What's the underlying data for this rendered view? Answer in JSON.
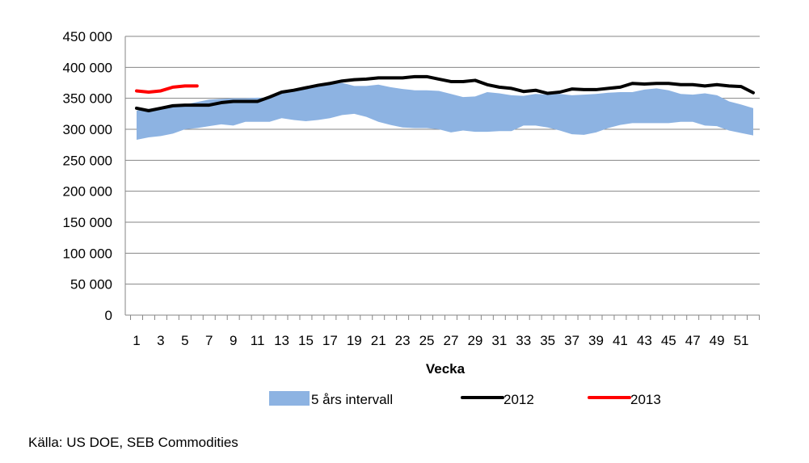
{
  "chart_data": {
    "type": "line",
    "xlabel": "Vecka",
    "ylim": [
      0,
      450000
    ],
    "yticks": [
      0,
      50000,
      100000,
      150000,
      200000,
      250000,
      300000,
      350000,
      400000,
      450000
    ],
    "ytick_labels": [
      "0",
      "50 000",
      "100 000",
      "150 000",
      "200 000",
      "250 000",
      "300 000",
      "350 000",
      "400 000",
      "450 000"
    ],
    "xlim": [
      1,
      52
    ],
    "xtick_labels": [
      "1",
      "3",
      "5",
      "7",
      "9",
      "11",
      "13",
      "15",
      "17",
      "19",
      "21",
      "23",
      "25",
      "27",
      "29",
      "31",
      "33",
      "35",
      "37",
      "39",
      "41",
      "43",
      "45",
      "47",
      "49",
      "51"
    ],
    "grid": "horizontal",
    "legend_position": "bottom",
    "band": {
      "name": "5 års intervall",
      "color": "#8db3e2",
      "x": [
        1,
        2,
        3,
        4,
        5,
        6,
        7,
        8,
        9,
        10,
        11,
        12,
        13,
        14,
        15,
        16,
        17,
        18,
        19,
        20,
        21,
        22,
        23,
        24,
        25,
        26,
        27,
        28,
        29,
        30,
        31,
        32,
        33,
        34,
        35,
        36,
        37,
        38,
        39,
        40,
        41,
        42,
        43,
        44,
        45,
        46,
        47,
        48,
        49,
        50,
        51,
        52
      ],
      "low": [
        283000,
        287000,
        289000,
        293000,
        300000,
        302000,
        305000,
        308000,
        306000,
        312000,
        312000,
        312000,
        318000,
        315000,
        313000,
        315000,
        318000,
        323000,
        325000,
        320000,
        312000,
        307000,
        303000,
        302000,
        302000,
        300000,
        295000,
        298000,
        296000,
        296000,
        297000,
        297000,
        306000,
        306000,
        303000,
        298000,
        292000,
        291000,
        295000,
        302000,
        307000,
        310000,
        310000,
        310000,
        310000,
        312000,
        312000,
        306000,
        305000,
        298000,
        294000,
        290000
      ],
      "high": [
        330000,
        333000,
        336000,
        339000,
        340000,
        344000,
        348000,
        349000,
        350000,
        350000,
        351000,
        351000,
        360000,
        362000,
        366000,
        369000,
        372000,
        375000,
        370000,
        370000,
        372000,
        368000,
        365000,
        363000,
        363000,
        362000,
        357000,
        352000,
        353000,
        360000,
        358000,
        355000,
        354000,
        357000,
        356000,
        357000,
        355000,
        356000,
        357000,
        359000,
        360000,
        360000,
        364000,
        366000,
        363000,
        357000,
        356000,
        358000,
        355000,
        345000,
        340000,
        334000
      ]
    },
    "series": [
      {
        "name": "2012",
        "color": "#000000",
        "x": [
          1,
          2,
          3,
          4,
          5,
          6,
          7,
          8,
          9,
          10,
          11,
          12,
          13,
          14,
          15,
          16,
          17,
          18,
          19,
          20,
          21,
          22,
          23,
          24,
          25,
          26,
          27,
          28,
          29,
          30,
          31,
          32,
          33,
          34,
          35,
          36,
          37,
          38,
          39,
          40,
          41,
          42,
          43,
          44,
          45,
          46,
          47,
          48,
          49,
          50,
          51,
          52
        ],
        "values": [
          334000,
          330000,
          334000,
          338000,
          339000,
          339000,
          339000,
          343000,
          345000,
          345000,
          345000,
          352000,
          360000,
          363000,
          367000,
          371000,
          374000,
          378000,
          380000,
          381000,
          383000,
          383000,
          383000,
          385000,
          385000,
          381000,
          377000,
          377000,
          379000,
          372000,
          368000,
          366000,
          361000,
          363000,
          358000,
          360000,
          365000,
          364000,
          364000,
          366000,
          368000,
          374000,
          373000,
          374000,
          374000,
          372000,
          372000,
          370000,
          372000,
          370000,
          369000,
          359000
        ]
      },
      {
        "name": "2013",
        "color": "#ff0000",
        "x": [
          1,
          2,
          3,
          4,
          5,
          6
        ],
        "values": [
          362000,
          360000,
          362000,
          368000,
          370000,
          370000
        ]
      }
    ],
    "source": "Källa: US DOE, SEB Commodities"
  }
}
